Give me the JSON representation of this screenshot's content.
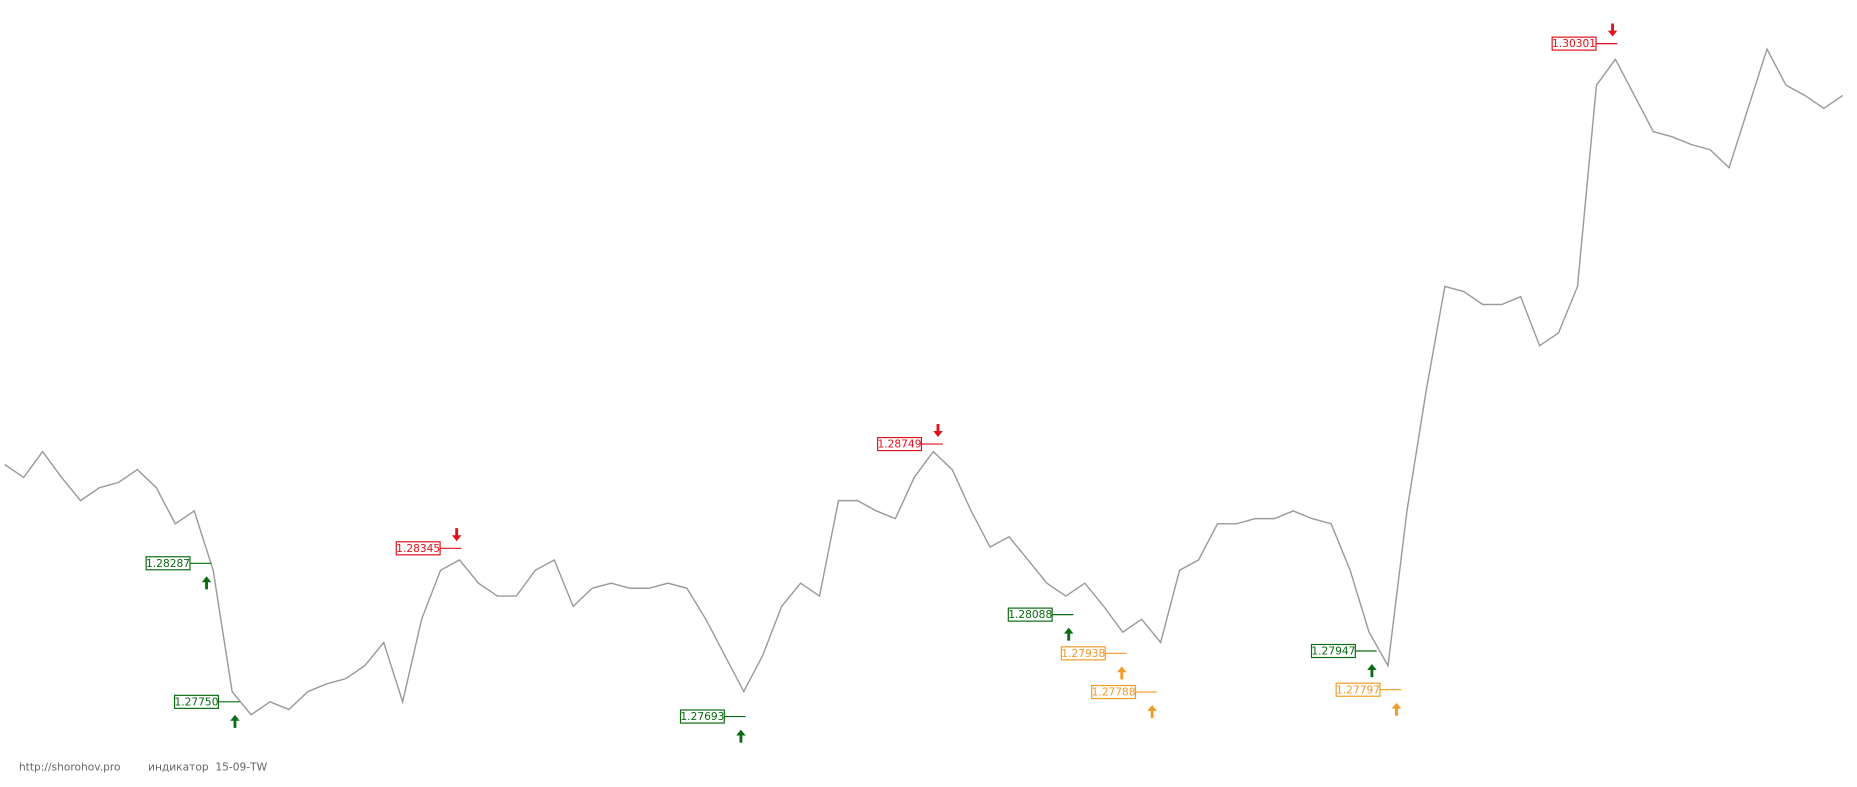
{
  "chart_data": {
    "type": "line",
    "color": "#9a9a9a",
    "xlim": [
      0,
      98
    ],
    "ylim": [
      1.2742,
      1.3047
    ],
    "values": [
      1.2867,
      1.2862,
      1.2872,
      1.2862,
      1.2853,
      1.2858,
      1.286,
      1.2865,
      1.2858,
      1.2844,
      1.2849,
      1.2826,
      1.2779,
      1.277,
      1.2775,
      1.2772,
      1.2779,
      1.2782,
      1.2784,
      1.2789,
      1.2798,
      1.2775,
      1.2807,
      1.2826,
      1.283,
      1.2821,
      1.2816,
      1.2816,
      1.2826,
      1.283,
      1.2812,
      1.2819,
      1.2821,
      1.2819,
      1.2819,
      1.2821,
      1.2819,
      1.2807,
      1.2793,
      1.2779,
      1.2793,
      1.2812,
      1.2821,
      1.2816,
      1.2853,
      1.2853,
      1.2849,
      1.2846,
      1.2862,
      1.2872,
      1.2865,
      1.2849,
      1.2835,
      1.2839,
      1.283,
      1.2821,
      1.2816,
      1.2821,
      1.2812,
      1.2802,
      1.2807,
      1.2798,
      1.2826,
      1.283,
      1.2844,
      1.2844,
      1.2846,
      1.2846,
      1.2849,
      1.2846,
      1.2844,
      1.2826,
      1.2802,
      1.2789,
      1.2849,
      1.2895,
      1.2936,
      1.2934,
      1.2929,
      1.2929,
      1.2932,
      1.2913,
      1.2918,
      1.2936,
      1.3014,
      1.3024,
      1.301,
      1.2996,
      1.2994,
      1.2991,
      1.2989,
      1.2982,
      1.3005,
      1.3028,
      1.3014,
      1.301,
      1.3005,
      1.301
    ],
    "signals": [
      {
        "x": 10.9,
        "value": 1.28287,
        "label": "1.28287",
        "direction": "up",
        "color": "#0b6b12"
      },
      {
        "x": 12.4,
        "value": 1.2775,
        "label": "1.27750",
        "direction": "up",
        "color": "#0b6b12"
      },
      {
        "x": 24.1,
        "value": 1.28345,
        "label": "1.28345",
        "direction": "down",
        "color": "#e3101b"
      },
      {
        "x": 39.1,
        "value": 1.27693,
        "label": "1.27693",
        "direction": "up",
        "color": "#0b6b12"
      },
      {
        "x": 49.5,
        "value": 1.28749,
        "label": "1.28749",
        "direction": "down",
        "color": "#e3101b"
      },
      {
        "x": 56.4,
        "value": 1.28088,
        "label": "1.28088",
        "direction": "up",
        "color": "#0b6b12"
      },
      {
        "x": 59.2,
        "value": 1.27938,
        "label": "1.27938",
        "direction": "up",
        "color": "#f39a25"
      },
      {
        "x": 60.8,
        "value": 1.27788,
        "label": "1.27788",
        "direction": "up",
        "color": "#f39a25"
      },
      {
        "x": 72.4,
        "value": 1.27947,
        "label": "1.27947",
        "direction": "up",
        "color": "#0b6b12"
      },
      {
        "x": 73.7,
        "value": 1.27797,
        "label": "1.27797",
        "direction": "up",
        "color": "#f39a25"
      },
      {
        "x": 85.1,
        "value": 1.30301,
        "label": "1.30301",
        "direction": "down",
        "color": "#e3101b"
      }
    ],
    "footer": {
      "site": "http://shorohov.pro",
      "note": "индикатор  15-09-TW"
    }
  }
}
